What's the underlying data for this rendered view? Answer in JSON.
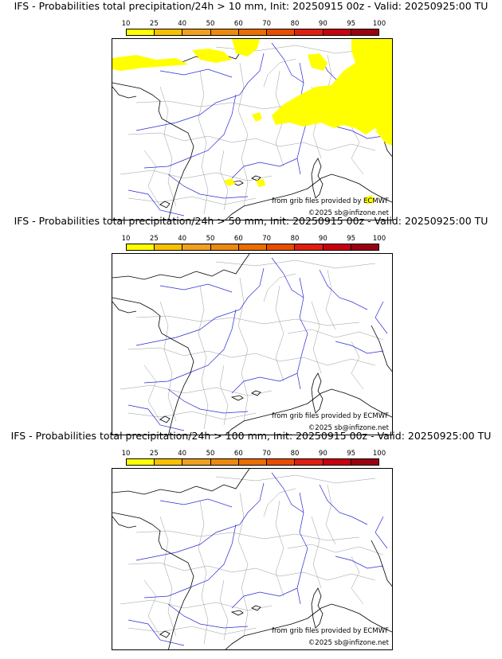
{
  "colorbar": {
    "ticks": [
      "10",
      "25",
      "40",
      "50",
      "60",
      "70",
      "80",
      "90",
      "95",
      "100"
    ],
    "colors": [
      "#ffff00",
      "#f8c000",
      "#f0a020",
      "#ec8a10",
      "#ea6e00",
      "#e94e00",
      "#e01e10",
      "#c80010",
      "#9a0010",
      "#6a0000"
    ]
  },
  "credits": {
    "source": "from grib files provided by ECMWF",
    "copyright": "©2025 sb@infizone.net"
  },
  "panels": [
    {
      "title": "IFS - Probabilities total precipitation/24h > 10 mm, Init: 20250915 00z - Valid: 20250925:00 TU",
      "threshold_mm": 10,
      "precip_areas": true,
      "precip_color": "#ffff00"
    },
    {
      "title": "IFS - Probabilities total precipitation/24h > 50 mm, Init: 20250915 00z - Valid: 20250925:00 TU",
      "threshold_mm": 50,
      "precip_areas": false
    },
    {
      "title": "IFS - Probabilities total precipitation/24h > 100 mm, Init: 20250915 00z - Valid: 20250925:00 TU",
      "threshold_mm": 100,
      "precip_areas": false
    }
  ],
  "map_colors": {
    "coast": "#000000",
    "rivers": "#2a2ad8",
    "borders": "#9a9a9a"
  }
}
